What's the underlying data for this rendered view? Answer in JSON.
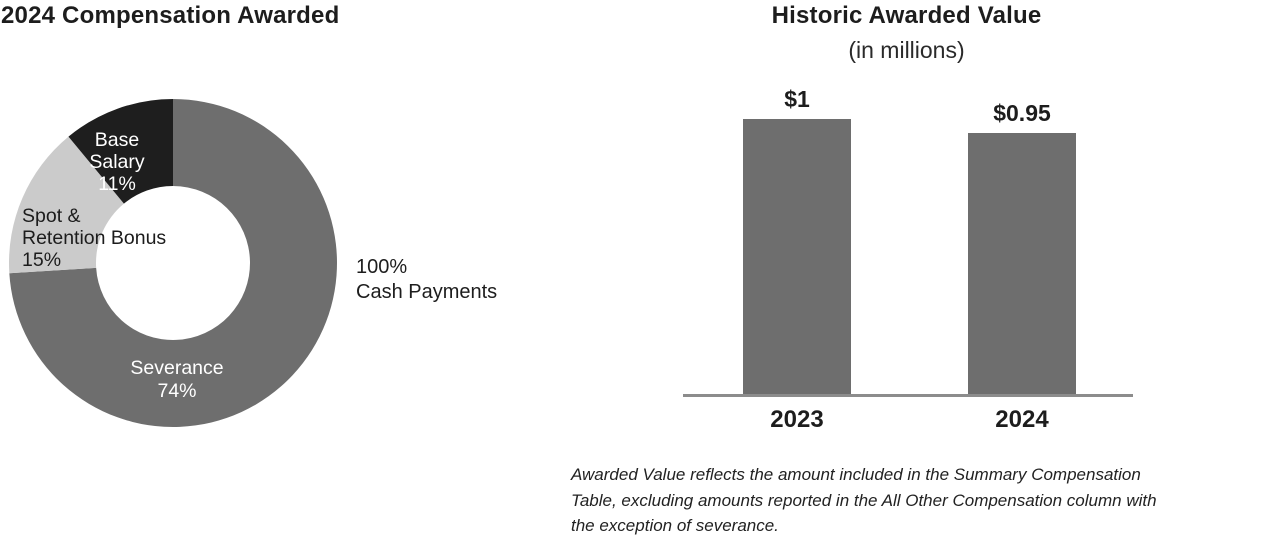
{
  "left_chart": {
    "title": "2024 Compensation Awarded",
    "segment_labels": {
      "base_salary": [
        "Base",
        "Salary",
        "11%"
      ],
      "spot_retention": [
        "Spot &",
        "Retention Bonus",
        "15%"
      ],
      "severance": [
        "Severance",
        "74%"
      ]
    },
    "annotation": [
      "100%",
      "Cash Payments"
    ]
  },
  "right_chart": {
    "title": "Historic Awarded Value",
    "subtitle": "(in millions)",
    "bars": [
      {
        "year": "2023",
        "value_label": "$1"
      },
      {
        "year": "2024",
        "value_label": "$0.95"
      }
    ],
    "footnote_lines": [
      "Awarded Value reflects the amount included in the Summary Compensation",
      "Table, excluding amounts reported in the All Other Compensation column with",
      "the exception of severance."
    ]
  },
  "colors": {
    "severance": "#6e6e6e",
    "spot_retention": "#cbcbcb",
    "base_salary": "#1e1e1e",
    "bar": "#6e6e6e",
    "axis": "#8c8c8c",
    "text": "#1d1d1d",
    "label_on_dark": "#ffffff"
  },
  "chart_data": [
    {
      "type": "pie",
      "donut": true,
      "title": "2024 Compensation Awarded",
      "labels": [
        "Severance",
        "Spot & Retention Bonus",
        "Base Salary"
      ],
      "values": [
        74,
        15,
        11
      ],
      "colors": [
        "#6e6e6e",
        "#cbcbcb",
        "#1e1e1e"
      ],
      "start_angle_deg": 0,
      "direction": "clockwise",
      "annotation": "100% Cash Payments"
    },
    {
      "type": "bar",
      "title": "Historic Awarded Value",
      "subtitle": "(in millions)",
      "categories": [
        "2023",
        "2024"
      ],
      "values": [
        1,
        0.95
      ],
      "data_labels": [
        "$1",
        "$0.95"
      ],
      "bar_color": "#6e6e6e",
      "axis_color": "#8c8c8c",
      "ylim": [
        0,
        1.1
      ],
      "grid": false,
      "legend": false,
      "footnote": "Awarded Value reflects the amount included in the Summary Compensation Table, excluding amounts reported in the All Other Compensation column with the exception of severance."
    }
  ]
}
